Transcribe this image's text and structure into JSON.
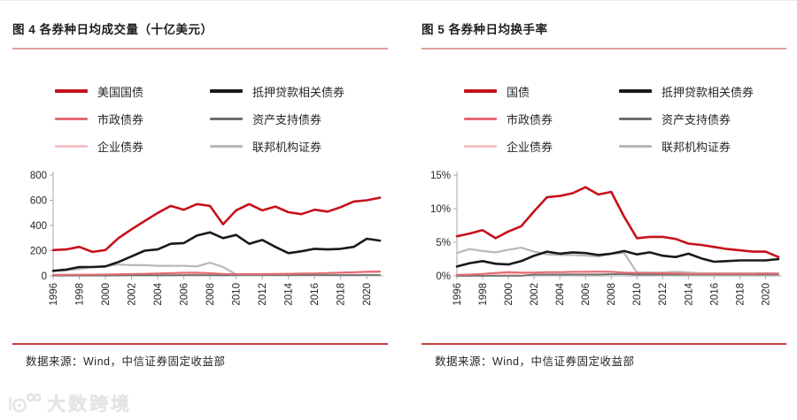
{
  "panels": [
    {
      "title": "图 4 各券种日均成交量（十亿美元）",
      "source": "数据来源：Wind，中信证券固定收益部",
      "legend": [
        {
          "label": "美国国债",
          "color": "#c7111b",
          "weight": 4
        },
        {
          "label": "抵押贷款相关债券",
          "color": "#1a1a1a",
          "weight": 4
        },
        {
          "label": "市政债券",
          "color": "#e56a72",
          "weight": 3
        },
        {
          "label": "资产支持债券",
          "color": "#6e6e6e",
          "weight": 3
        },
        {
          "label": "企业债券",
          "color": "#f5c3c6",
          "weight": 3
        },
        {
          "label": "联邦机构证券",
          "color": "#b8b8b8",
          "weight": 3
        }
      ]
    },
    {
      "title": "图 5 各券种日均换手率",
      "source": "数据来源：Wind，中信证券固定收益部",
      "legend": [
        {
          "label": "国债",
          "color": "#c7111b",
          "weight": 4
        },
        {
          "label": "抵押贷款相关债券",
          "color": "#1a1a1a",
          "weight": 4
        },
        {
          "label": "市政债券",
          "color": "#e56a72",
          "weight": 3
        },
        {
          "label": "资产支持债券",
          "color": "#6e6e6e",
          "weight": 3
        },
        {
          "label": "企业债券",
          "color": "#f5c3c6",
          "weight": 3
        },
        {
          "label": "联邦机构证券",
          "color": "#b8b8b8",
          "weight": 3
        }
      ]
    }
  ],
  "chart_data": [
    {
      "type": "line",
      "title": "图 4 各券种日均成交量（十亿美元）",
      "xlabel": "",
      "ylabel": "日均成交量（十亿美元）",
      "x": [
        1996,
        1997,
        1998,
        1999,
        2000,
        2001,
        2002,
        2003,
        2004,
        2005,
        2006,
        2007,
        2008,
        2009,
        2010,
        2011,
        2012,
        2013,
        2014,
        2015,
        2016,
        2017,
        2018,
        2019,
        2020,
        2021
      ],
      "xticks": [
        1996,
        1998,
        2000,
        2002,
        2004,
        2006,
        2008,
        2010,
        2012,
        2014,
        2016,
        2018,
        2020
      ],
      "ylim": [
        0,
        800
      ],
      "yticks": [
        0,
        200,
        400,
        600,
        800
      ],
      "ytick_suffix": "",
      "grid": false,
      "legend_position": "top",
      "series": [
        {
          "name": "美国国债",
          "color": "#c7111b",
          "width": 2.6,
          "z": 6,
          "values": [
            205,
            210,
            230,
            190,
            205,
            300,
            370,
            435,
            500,
            555,
            525,
            570,
            555,
            410,
            520,
            570,
            520,
            550,
            505,
            490,
            525,
            510,
            545,
            590,
            600,
            620
          ]
        },
        {
          "name": "抵押贷款相关债券",
          "color": "#1a1a1a",
          "width": 2.6,
          "z": 5,
          "values": [
            40,
            50,
            70,
            70,
            75,
            110,
            155,
            200,
            210,
            255,
            260,
            320,
            345,
            300,
            325,
            255,
            285,
            230,
            180,
            195,
            215,
            210,
            215,
            230,
            295,
            280
          ]
        },
        {
          "name": "市政债券",
          "color": "#e56a72",
          "width": 2.0,
          "z": 4,
          "values": [
            8,
            9,
            10,
            10,
            11,
            13,
            15,
            17,
            19,
            22,
            25,
            25,
            22,
            15,
            14,
            14,
            14,
            15,
            16,
            18,
            20,
            23,
            26,
            29,
            33,
            35
          ]
        },
        {
          "name": "资产支持债券",
          "color": "#6e6e6e",
          "width": 1.8,
          "z": 3,
          "values": [
            2,
            2,
            2,
            2,
            2,
            3,
            4,
            4,
            5,
            5,
            6,
            6,
            6,
            5,
            8,
            8,
            8,
            7,
            7,
            7,
            7,
            6,
            6,
            6,
            7,
            7
          ]
        },
        {
          "name": "企业债券",
          "color": "#f5c3c6",
          "width": 2.0,
          "z": 2,
          "values": [
            5,
            6,
            7,
            8,
            9,
            10,
            11,
            12,
            13,
            14,
            15,
            16,
            14,
            13,
            14,
            15,
            16,
            17,
            18,
            19,
            20,
            21,
            22,
            24,
            26,
            28
          ]
        },
        {
          "name": "联邦机构证券",
          "color": "#b8b8b8",
          "width": 2.2,
          "z": 1,
          "values": [
            40,
            45,
            55,
            70,
            78,
            90,
            85,
            85,
            80,
            80,
            80,
            75,
            105,
            70,
            12,
            8,
            6,
            5,
            5,
            5,
            4,
            4,
            4,
            4,
            4,
            4
          ]
        }
      ]
    },
    {
      "type": "line",
      "title": "图 5 各券种日均换手率",
      "xlabel": "",
      "ylabel": "日均换手率（%）",
      "x": [
        1996,
        1997,
        1998,
        1999,
        2000,
        2001,
        2002,
        2003,
        2004,
        2005,
        2006,
        2007,
        2008,
        2009,
        2010,
        2011,
        2012,
        2013,
        2014,
        2015,
        2016,
        2017,
        2018,
        2019,
        2020,
        2021
      ],
      "xticks": [
        1996,
        1998,
        2000,
        2002,
        2004,
        2006,
        2008,
        2010,
        2012,
        2014,
        2016,
        2018,
        2020
      ],
      "ylim": [
        0,
        15
      ],
      "yticks": [
        0,
        5,
        10,
        15
      ],
      "ytick_suffix": "%",
      "grid": false,
      "legend_position": "top",
      "series": [
        {
          "name": "国债",
          "color": "#c7111b",
          "width": 2.6,
          "z": 6,
          "values": [
            5.9,
            6.3,
            6.8,
            5.6,
            6.6,
            7.4,
            9.6,
            11.7,
            11.9,
            12.3,
            13.2,
            12.1,
            12.5,
            8.8,
            5.6,
            5.8,
            5.8,
            5.5,
            4.8,
            4.6,
            4.3,
            4.0,
            3.8,
            3.6,
            3.6,
            2.8
          ]
        },
        {
          "name": "抵押贷款相关债券",
          "color": "#1a1a1a",
          "width": 2.6,
          "z": 5,
          "values": [
            1.4,
            1.9,
            2.2,
            1.8,
            1.7,
            2.2,
            3.0,
            3.6,
            3.3,
            3.5,
            3.4,
            3.1,
            3.3,
            3.7,
            3.2,
            3.5,
            3.0,
            2.8,
            3.3,
            2.6,
            2.1,
            2.2,
            2.3,
            2.3,
            2.3,
            2.5
          ]
        },
        {
          "name": "市政债券",
          "color": "#e56a72",
          "width": 2.0,
          "z": 4,
          "values": [
            0.15,
            0.2,
            0.3,
            0.45,
            0.55,
            0.5,
            0.5,
            0.55,
            0.55,
            0.6,
            0.6,
            0.65,
            0.6,
            0.5,
            0.45,
            0.4,
            0.4,
            0.35,
            0.3,
            0.3,
            0.3,
            0.3,
            0.3,
            0.3,
            0.35,
            0.3
          ]
        },
        {
          "name": "资产支持债券",
          "color": "#6e6e6e",
          "width": 1.8,
          "z": 3,
          "values": [
            0,
            0,
            0,
            0,
            0,
            0,
            0.2,
            0.2,
            0.2,
            0.2,
            0.2,
            0.2,
            0.25,
            0.25,
            0.2,
            0.2,
            0.2,
            0.2,
            0.2,
            0.2,
            0.2,
            0.2,
            0.2,
            0.2,
            0.2,
            0.2
          ]
        },
        {
          "name": "企业债券",
          "color": "#f5c3c6",
          "width": 2.0,
          "z": 2,
          "values": [
            0.1,
            0.1,
            0.15,
            0.2,
            0.25,
            0.3,
            0.3,
            0.3,
            0.3,
            0.3,
            0.3,
            0.3,
            0.3,
            0.35,
            0.35,
            0.3,
            0.3,
            0.3,
            0.3,
            0.3,
            0.3,
            0.3,
            0.3,
            0.3,
            0.35,
            0.3
          ]
        },
        {
          "name": "联邦机构证券",
          "color": "#b8b8b8",
          "width": 2.2,
          "z": 1,
          "values": [
            3.4,
            4.0,
            3.7,
            3.5,
            3.9,
            4.2,
            3.6,
            3.2,
            3.1,
            3.1,
            3.0,
            2.9,
            3.3,
            3.4,
            0.5,
            0.5,
            0.5,
            0.6,
            0.5,
            0.4,
            0.4,
            0.4,
            0.4,
            0.4,
            0.4,
            0.4
          ]
        }
      ]
    }
  ],
  "watermark": {
    "text": "大数跨境",
    "icon": "dashu-logo"
  },
  "colors": {
    "accent_red": "#c7111b",
    "title_underline": "#dda09b",
    "source_rule": "#c04038",
    "axis": "#a9a9a9",
    "watermark": "#e4e4e4"
  }
}
